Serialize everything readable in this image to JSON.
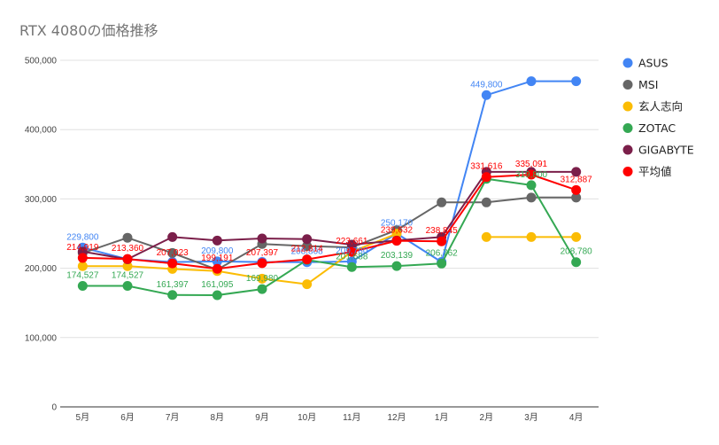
{
  "chart_data": {
    "type": "line",
    "title": "RTX 4080の価格推移",
    "xlabel": "",
    "ylabel": "",
    "categories": [
      "5月",
      "6月",
      "7月",
      "8月",
      "9月",
      "10月",
      "11月",
      "12月",
      "1月",
      "2月",
      "3月",
      "4月"
    ],
    "ylim": [
      0,
      500000
    ],
    "yticks": [
      "0",
      "100,000",
      "200,000",
      "300,000",
      "400,000",
      "500,000"
    ],
    "ytick_values": [
      0,
      100000,
      200000,
      300000,
      400000,
      500000
    ],
    "grid": true,
    "legend_position": "right",
    "series": [
      {
        "name": "ASUS",
        "color": "#4285f4",
        "values": [
          229800,
          213000,
          209000,
          209800,
          209000,
          208808,
          209780,
          250170,
          209000,
          449800,
          469800,
          469800
        ],
        "labels": [
          "229,800",
          "",
          "",
          "209,800",
          "",
          "208,808",
          "209,780",
          "250,170",
          "",
          "449,800",
          "",
          ""
        ]
      },
      {
        "name": "MSI",
        "color": "#666666",
        "values": [
          222000,
          244000,
          222000,
          198000,
          235000,
          232000,
          230000,
          255000,
          295000,
          295000,
          302000,
          302000
        ],
        "labels": [
          "",
          "",
          "",
          "",
          "",
          "",
          "",
          "",
          "",
          "",
          "",
          ""
        ]
      },
      {
        "name": "玄人志向",
        "color": "#fbbc04",
        "values": [
          203000,
          203000,
          199000,
          196000,
          185000,
          177000,
          223661,
          249800,
          null,
          245000,
          245000,
          245000
        ],
        "labels": [
          "",
          "",
          "",
          "",
          "",
          "",
          "",
          "",
          "",
          "",
          "",
          ""
        ]
      },
      {
        "name": "ZOTAC",
        "color": "#34a853",
        "values": [
          174527,
          174527,
          161397,
          161095,
          169980,
          212000,
          201688,
          203139,
          206762,
          329000,
          319800,
          208780
        ],
        "labels": [
          "174,527",
          "174,527",
          "161,397",
          "161,095",
          "169,980",
          "",
          "201,688",
          "203,139",
          "206,762",
          "",
          "319,800",
          "208,780"
        ]
      },
      {
        "name": "GIGABYTE",
        "color": "#7b1f4a",
        "values": [
          224000,
          213000,
          245000,
          240000,
          243000,
          242000,
          234000,
          240000,
          245000,
          339000,
          339000,
          339000
        ],
        "labels": [
          "",
          "",
          "",
          "",
          "",
          "",
          "",
          "",
          "",
          "",
          "",
          ""
        ]
      },
      {
        "name": "平均値",
        "color": "#ff0000",
        "values": [
          214919,
          213360,
          207023,
          199191,
          207397,
          212814,
          223661,
          239632,
          238845,
          331616,
          335091,
          312887
        ],
        "labels": [
          "214,919",
          "213,360",
          "207,023",
          "199,191",
          "207,397",
          "212,814",
          "223,661",
          "239,632",
          "238,845",
          "331,616",
          "335,091",
          "312,887"
        ]
      }
    ]
  }
}
